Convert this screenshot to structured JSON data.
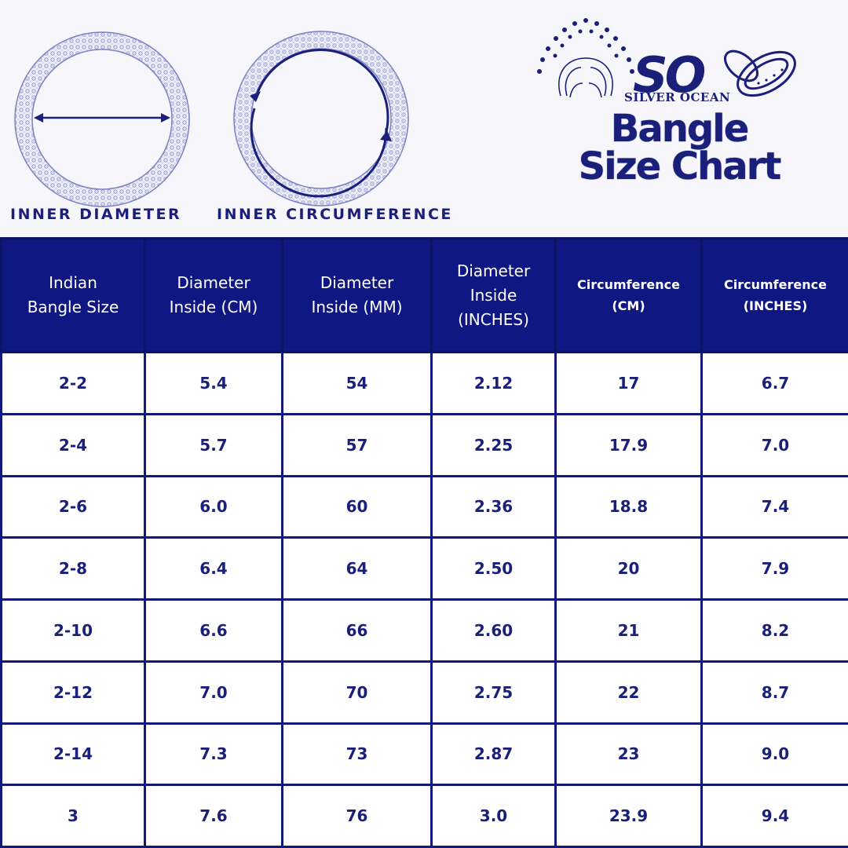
{
  "diagrams": {
    "diameter_label": "INNER DIAMETER",
    "circumference_label": "INNER CIRCUMFERENCE"
  },
  "brand": {
    "logo_letters": "SO",
    "name": "SILVER OCEAN",
    "title_line1": "Bangle",
    "title_line2": "Size Chart",
    "colors": {
      "navy": "#0f1782",
      "text": "#1a1f7a",
      "ring": "#8e93c8"
    }
  },
  "table": {
    "headers": [
      [
        "Indian",
        "Bangle Size"
      ],
      [
        "Diameter",
        "Inside (CM)"
      ],
      [
        "Diameter",
        "Inside (MM)"
      ],
      [
        "Diameter",
        "Inside",
        "(INCHES)"
      ],
      [
        "Circumference",
        "(CM)"
      ],
      [
        "Circumference",
        "(INCHES)"
      ]
    ],
    "rows": [
      [
        "2-2",
        "5.4",
        "54",
        "2.12",
        "17",
        "6.7"
      ],
      [
        "2-4",
        "5.7",
        "57",
        "2.25",
        "17.9",
        "7.0"
      ],
      [
        "2-6",
        "6.0",
        "60",
        "2.36",
        "18.8",
        "7.4"
      ],
      [
        "2-8",
        "6.4",
        "64",
        "2.50",
        "20",
        "7.9"
      ],
      [
        "2-10",
        "6.6",
        "66",
        "2.60",
        "21",
        "8.2"
      ],
      [
        "2-12",
        "7.0",
        "70",
        "2.75",
        "22",
        "8.7"
      ],
      [
        "2-14",
        "7.3",
        "73",
        "2.87",
        "23",
        "9.0"
      ],
      [
        "3",
        "7.6",
        "76",
        "3.0",
        "23.9",
        "9.4"
      ]
    ]
  }
}
